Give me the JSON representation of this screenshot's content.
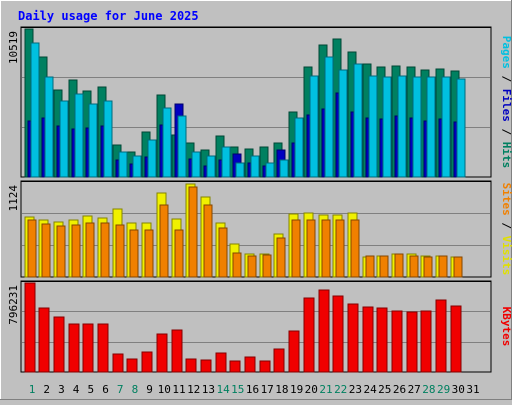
{
  "chart_data": {
    "type": "bar",
    "title": "Daily usage for June 2025",
    "categories": [
      "1",
      "2",
      "3",
      "4",
      "5",
      "6",
      "7",
      "8",
      "9",
      "10",
      "11",
      "12",
      "13",
      "14",
      "15",
      "16",
      "17",
      "18",
      "19",
      "20",
      "21",
      "22",
      "23",
      "24",
      "25",
      "26",
      "27",
      "28",
      "29",
      "30",
      "31"
    ],
    "weekend_days": [
      1,
      7,
      8,
      14,
      15,
      21,
      22,
      28,
      29
    ],
    "panels": [
      {
        "id": "requests",
        "ymax_label": "10519",
        "ymax": 10519,
        "right_label_parts": [
          {
            "text": "Pages",
            "color": "#00c0e0"
          },
          {
            "text": " / ",
            "color": "#000000"
          },
          {
            "text": "Files",
            "color": "#0000c0"
          },
          {
            "text": " / ",
            "color": "#000000"
          },
          {
            "text": "Hits",
            "color": "#008060"
          }
        ],
        "series": [
          {
            "name": "Hits",
            "color": "#008060",
            "values": [
              10519,
              8500,
              6200,
              6900,
              6100,
              6400,
              2300,
              1800,
              3200,
              5800,
              3000,
              2400,
              1900,
              2900,
              2100,
              2000,
              2100,
              2400,
              4600,
              7800,
              9400,
              9800,
              8900,
              8000,
              7800,
              7900,
              7800,
              7600,
              7700,
              7500,
              0
            ]
          },
          {
            "name": "Files",
            "color": "#0000c0",
            "values": [
              4000,
              4200,
              3600,
              3400,
              3500,
              3600,
              1200,
              900,
              1400,
              3700,
              5200,
              1300,
              800,
              1200,
              1600,
              1000,
              800,
              1900,
              2400,
              4400,
              4800,
              6000,
              4600,
              4200,
              4100,
              4300,
              4200,
              4000,
              4100,
              3900,
              0
            ]
          },
          {
            "name": "Pages",
            "color": "#00c0e0",
            "values": [
              9500,
              7100,
              5400,
              5900,
              5200,
              5400,
              1800,
              1500,
              2600,
              4900,
              4300,
              1800,
              1500,
              2100,
              1000,
              1500,
              1000,
              1200,
              4200,
              7200,
              8500,
              7600,
              8000,
              7200,
              7100,
              7200,
              7100,
              7100,
              7100,
              7000,
              0
            ]
          }
        ]
      },
      {
        "id": "visits",
        "ymax_label": "1124",
        "ymax": 1124,
        "right_label_parts": [
          {
            "text": "Sites",
            "color": "#f08000"
          },
          {
            "text": " / ",
            "color": "#000000"
          },
          {
            "text": "Visits",
            "color": "#e0e000"
          }
        ],
        "series": [
          {
            "name": "Visits",
            "color": "#f0f000",
            "values": [
              720,
              680,
              660,
              680,
              730,
              700,
              810,
              650,
              650,
              1000,
              690,
              1110,
              960,
              640,
              390,
              280,
              280,
              520,
              750,
              760,
              740,
              740,
              770,
              240,
              250,
              270,
              270,
              250,
              250,
              240,
              0
            ]
          },
          {
            "name": "Sites",
            "color": "#f08000",
            "values": [
              680,
              630,
              610,
              620,
              640,
              640,
              620,
              560,
              560,
              860,
              560,
              1080,
              860,
              590,
              290,
              250,
              260,
              470,
              680,
              680,
              680,
              680,
              680,
              250,
              250,
              280,
              250,
              240,
              250,
              240,
              0
            ]
          }
        ]
      },
      {
        "id": "kbytes",
        "ymax_label": "796231",
        "ymax": 796231,
        "right_label_parts": [
          {
            "text": "KBytes",
            "color": "#f00000"
          }
        ],
        "series": [
          {
            "name": "KBytes",
            "color": "#f00000",
            "values": [
              796231,
              570000,
              490000,
              430000,
              430000,
              430000,
              160000,
              120000,
              180000,
              340000,
              380000,
              120000,
              110000,
              170000,
              100000,
              130000,
              100000,
              210000,
              370000,
              660000,
              730000,
              680000,
              610000,
              580000,
              570000,
              550000,
              540000,
              550000,
              640000,
              590000,
              0
            ]
          }
        ]
      }
    ]
  }
}
